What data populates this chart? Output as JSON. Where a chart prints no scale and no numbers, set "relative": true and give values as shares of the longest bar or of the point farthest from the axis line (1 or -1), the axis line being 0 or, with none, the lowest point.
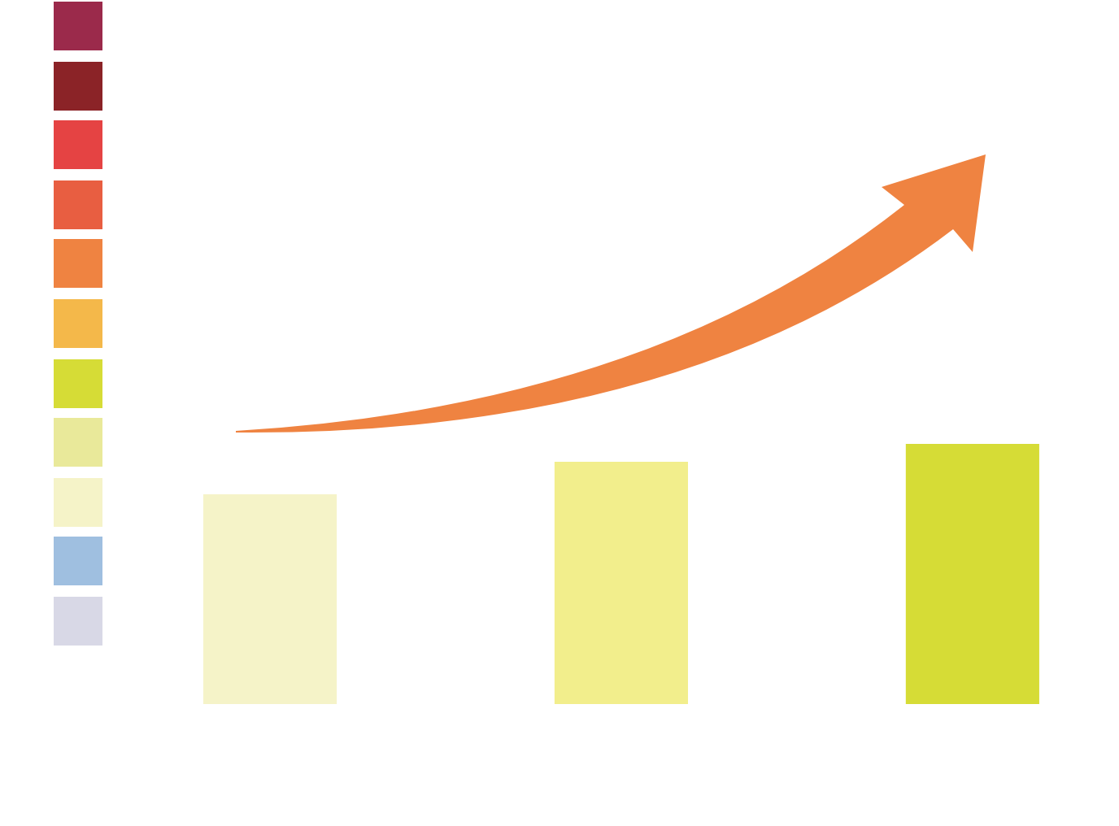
{
  "chart_data": {
    "type": "bar",
    "relative": true,
    "categories": [
      null,
      null,
      null
    ],
    "values": [
      0.806,
      0.931,
      1
    ],
    "colors": [
      "#f5f3c8",
      "#f2ee8c",
      "#d6dc36"
    ]
  }
}
